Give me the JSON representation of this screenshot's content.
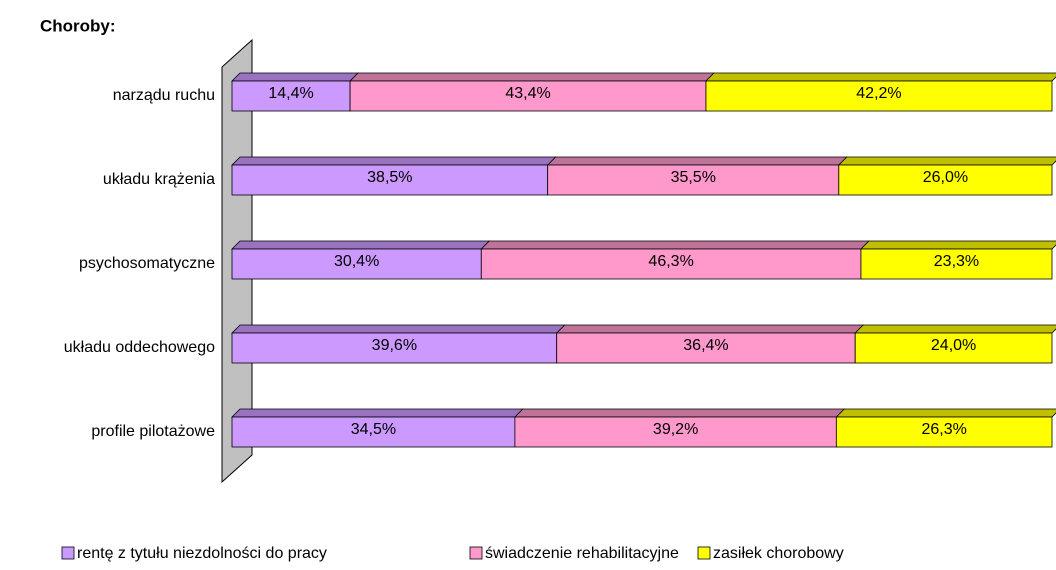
{
  "chart_data": {
    "type": "stacked_bar_horizontal",
    "title": "Choroby:",
    "categories": [
      "narządu ruchu",
      "układu krążenia",
      "psychosomatyczne",
      "układu oddechowego",
      "profile pilotażowe"
    ],
    "series": [
      {
        "name": "rentę z tytułu niezdolności do pracy",
        "color": "#cc99ff",
        "values": [
          14.4,
          38.5,
          30.4,
          39.6,
          34.5
        ],
        "value_labels": [
          "14,4%",
          "38,5%",
          "30,4%",
          "39,6%",
          "34,5%"
        ]
      },
      {
        "name": "świadczenie rehabilitacyjne",
        "color": "#ff99cc",
        "values": [
          43.4,
          35.5,
          46.3,
          36.4,
          39.2
        ],
        "value_labels": [
          "43,4%",
          "35,5%",
          "46,3%",
          "36,4%",
          "39,2%"
        ]
      },
      {
        "name": "zasiłek chorobowy",
        "color": "#ffff00",
        "values": [
          42.2,
          26.0,
          23.3,
          24.0,
          26.3
        ],
        "value_labels": [
          "42,2%",
          "26,0%",
          "23,3%",
          "24,0%",
          "26,3%"
        ]
      }
    ],
    "xlim": [
      0,
      100
    ],
    "legend": "bottom"
  }
}
